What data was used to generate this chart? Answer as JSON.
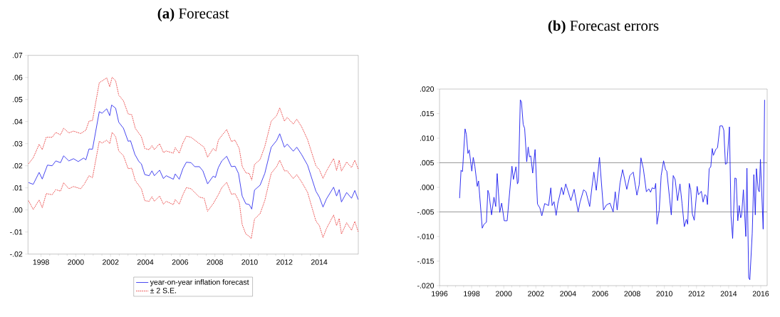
{
  "chart_data": [
    {
      "type": "line",
      "title": "**(a)** Forecast",
      "xlim": [
        1997.25,
        2016.25
      ],
      "xticks": [
        1998,
        2000,
        2002,
        2004,
        2006,
        2008,
        2010,
        2012,
        2014
      ],
      "ylim": [
        -0.02,
        0.07
      ],
      "yticks": [
        {
          "value": -0.02,
          "label": "-.02"
        },
        {
          "value": -0.01,
          "label": "-.01"
        },
        {
          "value": 0.0,
          "label": ".00"
        },
        {
          "value": 0.01,
          "label": ".01"
        },
        {
          "value": 0.02,
          "label": ".02"
        },
        {
          "value": 0.03,
          "label": ".03"
        },
        {
          "value": 0.04,
          "label": ".04"
        },
        {
          "value": 0.05,
          "label": ".05"
        },
        {
          "value": 0.06,
          "label": ".06"
        },
        {
          "value": 0.07,
          "label": ".07"
        }
      ],
      "legend": "bottom",
      "series": [
        {
          "name": "year-on-year inflation forecast",
          "color": "#3333ee",
          "line_style": "solid",
          "x": [
            1997.28,
            1997.55,
            1997.89,
            1998.07,
            1998.37,
            1998.64,
            1998.85,
            1999.12,
            1999.3,
            1999.6,
            1999.87,
            2000.14,
            2000.45,
            2000.58,
            2000.76,
            2000.96,
            2001.35,
            2001.51,
            2001.78,
            2001.95,
            2002.06,
            2002.29,
            2002.47,
            2002.74,
            2003.01,
            2003.15,
            2003.4,
            2003.63,
            2003.77,
            2003.97,
            2004.22,
            2004.38,
            2004.52,
            2004.82,
            2005.04,
            2005.2,
            2005.61,
            2005.72,
            2005.95,
            2006.16,
            2006.36,
            2006.63,
            2006.84,
            2007.11,
            2007.31,
            2007.58,
            2007.9,
            2008.03,
            2008.2,
            2008.4,
            2008.68,
            2008.95,
            2009.16,
            2009.36,
            2009.57,
            2009.78,
            2009.98,
            2010.12,
            2010.28,
            2010.6,
            2010.87,
            2011.24,
            2011.55,
            2011.73,
            2012.0,
            2012.16,
            2012.51,
            2012.71,
            2012.98,
            2013.33,
            2013.81,
            2014.01,
            2014.22,
            2014.42,
            2014.83,
            2015.0,
            2015.15,
            2015.28,
            2015.58,
            2015.86,
            2016.05,
            2016.24
          ],
          "values": [
            0.0124,
            0.0116,
            0.017,
            0.014,
            0.0203,
            0.02,
            0.0222,
            0.0214,
            0.0245,
            0.0222,
            0.0232,
            0.0219,
            0.0235,
            0.0227,
            0.0276,
            0.0275,
            0.0445,
            0.0438,
            0.0458,
            0.0427,
            0.0475,
            0.0461,
            0.0397,
            0.037,
            0.0311,
            0.0313,
            0.0251,
            0.0219,
            0.0209,
            0.016,
            0.0155,
            0.0177,
            0.0155,
            0.018,
            0.0142,
            0.0155,
            0.0139,
            0.0163,
            0.0139,
            0.0187,
            0.0216,
            0.0214,
            0.0196,
            0.0196,
            0.0177,
            0.0118,
            0.0153,
            0.0147,
            0.0192,
            0.0222,
            0.0243,
            0.0196,
            0.0198,
            0.0165,
            0.0063,
            0.0028,
            0.0024,
            0.0004,
            0.009,
            0.0112,
            0.0165,
            0.0284,
            0.0314,
            0.0345,
            0.0284,
            0.0298,
            0.0266,
            0.0284,
            0.0252,
            0.0203,
            0.0085,
            0.0058,
            0.0013,
            0.005,
            0.0103,
            0.0063,
            0.0092,
            0.0036,
            0.0079,
            0.0053,
            0.0088,
            0.0047
          ]
        },
        {
          "name": "± 2 S.E.",
          "color": "#e83030",
          "line_style": "dashed",
          "x": [
            1997.28,
            1997.55,
            1997.89,
            1998.07,
            1998.3,
            1998.64,
            1998.85,
            1999.12,
            1999.3,
            1999.6,
            1999.87,
            2000.28,
            2000.58,
            2000.76,
            2000.96,
            2001.35,
            2001.78,
            2001.95,
            2002.09,
            2002.29,
            2002.47,
            2002.74,
            2003.01,
            2003.22,
            2003.42,
            2003.77,
            2003.97,
            2004.22,
            2004.38,
            2004.52,
            2004.82,
            2005.04,
            2005.2,
            2005.61,
            2005.72,
            2005.95,
            2006.16,
            2006.36,
            2006.63,
            2007.11,
            2007.38,
            2007.58,
            2007.9,
            2008.06,
            2008.2,
            2008.4,
            2008.68,
            2008.95,
            2009.16,
            2009.4,
            2009.57,
            2009.78,
            2009.98,
            2010.12,
            2010.28,
            2010.6,
            2010.87,
            2011.24,
            2011.55,
            2011.73,
            2012.0,
            2012.16,
            2012.51,
            2012.71,
            2012.98,
            2013.33,
            2013.81,
            2014.01,
            2014.22,
            2014.42,
            2014.83,
            2015.0,
            2015.15,
            2015.28,
            2015.58,
            2015.86,
            2016.05,
            2016.24
          ],
          "values": [
            0.0209,
            0.0236,
            0.0297,
            0.0273,
            0.0329,
            0.0329,
            0.0351,
            0.034,
            0.037,
            0.0349,
            0.0357,
            0.0346,
            0.0361,
            0.0402,
            0.0405,
            0.0576,
            0.0598,
            0.0558,
            0.0601,
            0.0585,
            0.052,
            0.0494,
            0.0435,
            0.0431,
            0.037,
            0.0332,
            0.0278,
            0.0273,
            0.0291,
            0.0273,
            0.03,
            0.026,
            0.0267,
            0.0257,
            0.0282,
            0.0257,
            0.0303,
            0.0334,
            0.0329,
            0.03,
            0.0284,
            0.0239,
            0.0278,
            0.0267,
            0.0316,
            0.0337,
            0.0364,
            0.031,
            0.0316,
            0.0278,
            0.0198,
            0.0168,
            0.0165,
            0.0135,
            0.0206,
            0.0228,
            0.0287,
            0.0402,
            0.0427,
            0.0462,
            0.0402,
            0.0419,
            0.0389,
            0.0411,
            0.0378,
            0.0319,
            0.02,
            0.0182,
            0.0143,
            0.0176,
            0.0233,
            0.0179,
            0.0225,
            0.0176,
            0.0217,
            0.0192,
            0.0225,
            0.0186
          ]
        },
        {
          "color": "#e83030",
          "line_style": "dashed",
          "x": [
            1997.28,
            1997.55,
            1997.89,
            1998.07,
            1998.3,
            1998.64,
            1998.85,
            1999.12,
            1999.3,
            1999.6,
            1999.87,
            2000.28,
            2000.49,
            2000.76,
            2000.96,
            2001.35,
            2001.51,
            2001.78,
            2001.95,
            2002.09,
            2002.29,
            2002.47,
            2002.74,
            2003.01,
            2003.22,
            2003.42,
            2003.77,
            2003.97,
            2004.22,
            2004.38,
            2004.52,
            2004.82,
            2005.04,
            2005.2,
            2005.61,
            2005.72,
            2005.95,
            2006.16,
            2006.36,
            2006.63,
            2007.11,
            2007.38,
            2007.58,
            2007.9,
            2008.2,
            2008.4,
            2008.68,
            2008.95,
            2009.16,
            2009.4,
            2009.57,
            2009.78,
            2009.98,
            2010.09,
            2010.28,
            2010.6,
            2010.87,
            2011.24,
            2011.55,
            2011.73,
            2012.0,
            2012.16,
            2012.51,
            2012.71,
            2012.98,
            2013.33,
            2013.81,
            2014.01,
            2014.22,
            2014.42,
            2014.83,
            2015.0,
            2015.15,
            2015.28,
            2015.58,
            2015.86,
            2016.05,
            2016.24
          ],
          "values": [
            0.0042,
            0.0002,
            0.0045,
            0.001,
            0.0074,
            0.0069,
            0.0092,
            0.0085,
            0.0123,
            0.0096,
            0.0106,
            0.0096,
            0.0117,
            0.0155,
            0.0146,
            0.0311,
            0.0303,
            0.0316,
            0.03,
            0.0351,
            0.0332,
            0.0267,
            0.0246,
            0.0187,
            0.0189,
            0.0133,
            0.0096,
            0.0042,
            0.0039,
            0.006,
            0.0039,
            0.0063,
            0.0026,
            0.0039,
            0.0024,
            0.0047,
            0.0026,
            0.0069,
            0.0101,
            0.0096,
            0.0058,
            0.0053,
            -0.0006,
            0.0028,
            0.0069,
            0.0101,
            0.0125,
            0.0071,
            0.0074,
            0.0037,
            -0.0066,
            -0.0109,
            -0.012,
            -0.013,
            -0.0041,
            -0.0017,
            0.0042,
            0.0166,
            0.0196,
            0.0225,
            0.0177,
            0.0177,
            0.0142,
            0.016,
            0.0128,
            0.008,
            -0.005,
            -0.0071,
            -0.0125,
            -0.0084,
            -0.0023,
            -0.0071,
            -0.0039,
            -0.0109,
            -0.0058,
            -0.0092,
            -0.0052,
            -0.0098
          ]
        }
      ]
    },
    {
      "type": "line",
      "title": "**(b)** Forecast errors",
      "xlim": [
        1996,
        2016.4
      ],
      "xticks": [
        1996,
        1998,
        2000,
        2002,
        2004,
        2006,
        2008,
        2010,
        2012,
        2014,
        2016
      ],
      "ylim": [
        -0.02,
        0.02
      ],
      "yticks": [
        {
          "value": -0.02,
          "label": "-.020"
        },
        {
          "value": -0.015,
          "label": "-.015"
        },
        {
          "value": -0.01,
          "label": "-.010"
        },
        {
          "value": -0.005,
          "label": "-.005"
        },
        {
          "value": 0.0,
          "label": ".000"
        },
        {
          "value": 0.005,
          "label": ".005"
        },
        {
          "value": 0.01,
          "label": ".010"
        },
        {
          "value": 0.015,
          "label": ".015"
        },
        {
          "value": 0.02,
          "label": ".020"
        }
      ],
      "ref_lines": [
        {
          "axis": "y",
          "value": 0.005,
          "color": "#808080"
        },
        {
          "axis": "y",
          "value": -0.005,
          "color": "#808080"
        }
      ],
      "series": [
        {
          "color": "#1a1aee",
          "line_style": "solid",
          "x": [
            1997.25,
            1997.34,
            1997.43,
            1997.59,
            1997.67,
            1997.77,
            1997.85,
            1998.01,
            1998.1,
            1998.2,
            1998.35,
            1998.43,
            1998.66,
            1998.77,
            1998.92,
            1999.01,
            1999.08,
            1999.24,
            1999.39,
            1999.5,
            1999.59,
            1999.75,
            1999.87,
            2000.03,
            2000.21,
            2000.51,
            2000.6,
            2000.76,
            2000.85,
            2000.91,
            2001.03,
            2001.1,
            2001.21,
            2001.3,
            2001.43,
            2001.52,
            2001.6,
            2001.68,
            2001.8,
            2001.95,
            2002.1,
            2002.25,
            2002.37,
            2002.55,
            2002.79,
            2002.93,
            2003.01,
            2003.13,
            2003.26,
            2003.37,
            2003.6,
            2003.71,
            2003.86,
            2004.18,
            2004.38,
            2004.63,
            2004.75,
            2004.97,
            2005.12,
            2005.35,
            2005.49,
            2005.61,
            2005.76,
            2005.96,
            2006.21,
            2006.39,
            2006.61,
            2006.81,
            2006.94,
            2007.06,
            2007.24,
            2007.4,
            2007.66,
            2007.85,
            2008.06,
            2008.29,
            2008.43,
            2008.54,
            2008.69,
            2008.88,
            2009.03,
            2009.14,
            2009.24,
            2009.39,
            2009.46,
            2009.54,
            2009.68,
            2009.8,
            2009.95,
            2010.07,
            2010.15,
            2010.43,
            2010.55,
            2010.67,
            2010.82,
            2010.97,
            2011.1,
            2011.24,
            2011.37,
            2011.45,
            2011.55,
            2011.64,
            2011.74,
            2011.86,
            2012.04,
            2012.12,
            2012.3,
            2012.41,
            2012.52,
            2012.61,
            2012.68,
            2012.79,
            2012.89,
            2012.98,
            2013.05,
            2013.2,
            2013.31,
            2013.46,
            2013.61,
            2013.7,
            2013.8,
            2013.9,
            2014.05,
            2014.15,
            2014.25,
            2014.39,
            2014.47,
            2014.57,
            2014.66,
            2014.75,
            2014.81,
            2014.92,
            2015.07,
            2015.14,
            2015.25,
            2015.32,
            2015.47,
            2015.57,
            2015.66,
            2015.73,
            2015.84,
            2015.91,
            2015.98,
            2016.15,
            2016.24
          ],
          "values": [
            -0.0022,
            0.0035,
            0.0032,
            0.0119,
            0.0108,
            0.0069,
            0.0076,
            0.0033,
            0.0061,
            0.0043,
            0.0002,
            0.0013,
            -0.0083,
            -0.0075,
            -0.0071,
            -0.0006,
            -0.0013,
            -0.0056,
            -0.002,
            -0.0039,
            0.0028,
            -0.0051,
            -0.0032,
            -0.0068,
            -0.0068,
            0.0043,
            0.0016,
            0.0042,
            0.0007,
            0.0012,
            0.0178,
            0.0174,
            0.0128,
            0.012,
            0.0052,
            0.0082,
            0.0062,
            0.0064,
            0.0029,
            0.0077,
            -0.0034,
            -0.0042,
            -0.0058,
            -0.0033,
            -0.0037,
            -0.0001,
            -0.0037,
            -0.0029,
            -0.0057,
            -0.0032,
            0.0,
            -0.0015,
            0.0007,
            -0.0027,
            -0.0004,
            -0.005,
            -0.003,
            -0.0005,
            -0.0009,
            -0.0039,
            0.0,
            0.0031,
            -0.0006,
            0.0061,
            -0.0046,
            -0.0036,
            -0.0032,
            -0.005,
            -0.0009,
            -0.0046,
            0.0009,
            0.0036,
            -0.0004,
            0.0024,
            0.0031,
            -0.0016,
            0.0005,
            0.006,
            0.0038,
            -0.0009,
            -0.0003,
            -0.001,
            -0.0001,
            -0.0003,
            0.0008,
            -0.0075,
            -0.0046,
            0.0024,
            0.0054,
            0.0036,
            0.0033,
            -0.0056,
            0.0024,
            0.0016,
            -0.0027,
            0.0007,
            -0.0033,
            -0.008,
            -0.0065,
            -0.0075,
            0.0008,
            -0.0005,
            -0.0054,
            -0.0067,
            0.0002,
            -0.0015,
            -0.0008,
            -0.003,
            -0.0015,
            -0.0017,
            -0.0035,
            0.0038,
            0.0042,
            0.0079,
            0.0065,
            0.0077,
            0.0081,
            0.0125,
            0.0125,
            0.0116,
            0.0047,
            0.0049,
            0.0123,
            -0.0058,
            -0.0104,
            0.0019,
            0.0018,
            -0.0068,
            -0.0037,
            -0.0062,
            -0.0056,
            -0.0005,
            -0.01,
            0.0039,
            -0.0184,
            -0.0188,
            -0.0093,
            0.0026,
            -0.0056,
            0.0038,
            -0.0005,
            -0.0009,
            0.0057,
            -0.0085,
            0.0178
          ]
        }
      ]
    }
  ]
}
